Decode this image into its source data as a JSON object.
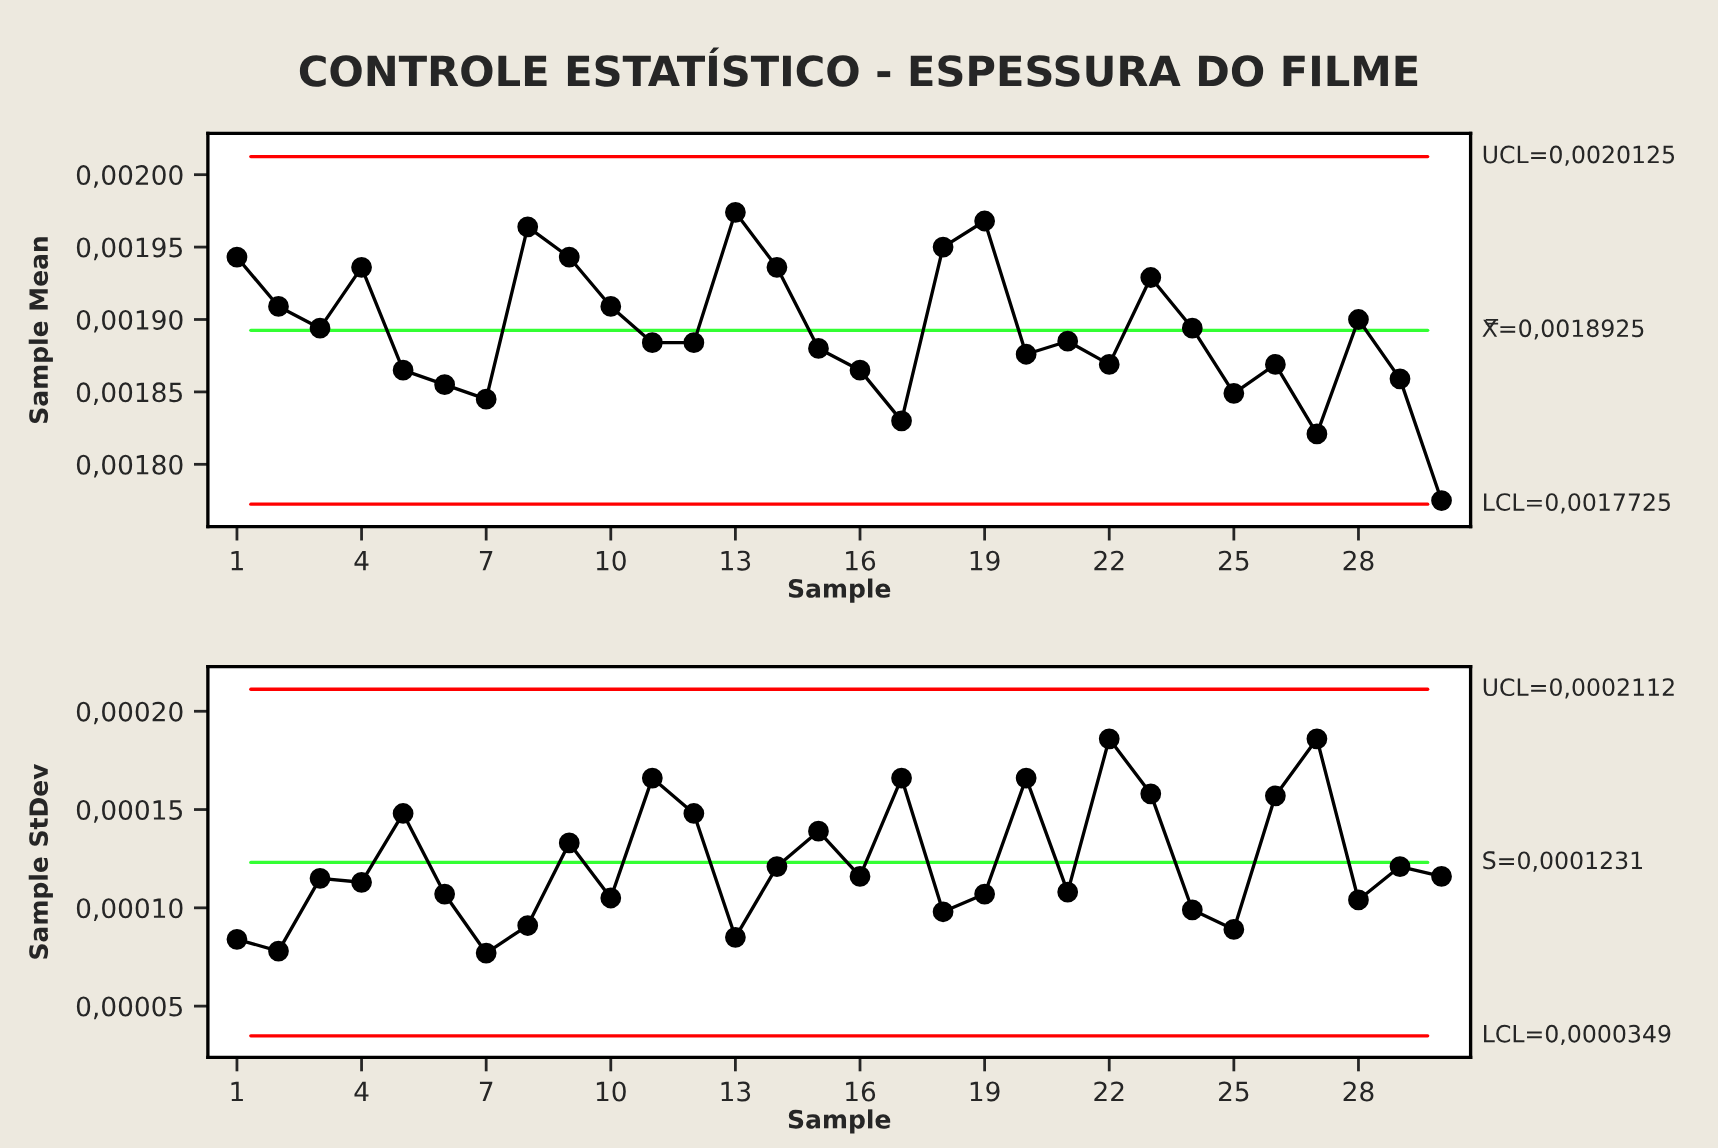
{
  "chart_data": [
    {
      "type": "line",
      "title": "CONTROLE ESTATÍSTICO - ESPESSURA DO FILME",
      "xlabel": "Sample",
      "ylabel": "Sample Mean",
      "x": [
        1,
        2,
        3,
        4,
        5,
        6,
        7,
        8,
        9,
        10,
        11,
        12,
        13,
        14,
        15,
        16,
        17,
        18,
        19,
        20,
        21,
        22,
        23,
        24,
        25,
        26,
        27,
        28,
        29,
        30
      ],
      "series": [
        {
          "color": "#000000",
          "values": [
            0.001943,
            0.001909,
            0.001894,
            0.001936,
            0.001865,
            0.001855,
            0.001845,
            0.001964,
            0.001943,
            0.001909,
            0.001884,
            0.001884,
            0.001974,
            0.001936,
            0.00188,
            0.001865,
            0.00183,
            0.00195,
            0.001968,
            0.001876,
            0.001885,
            0.001869,
            0.001929,
            0.001894,
            0.001849,
            0.001869,
            0.001821,
            0.0019,
            0.001859,
            0.001775
          ]
        }
      ],
      "marker": "circle",
      "line_style": "solid",
      "grid": false,
      "legend": false,
      "xlim": [
        0.3,
        30.7
      ],
      "xticks": [
        1,
        4,
        7,
        10,
        13,
        16,
        19,
        22,
        25,
        28
      ],
      "ylim": [
        0.001757,
        0.0020285
      ],
      "yticks": [
        {
          "value": 0.0018,
          "label": "0,00180"
        },
        {
          "value": 0.00185,
          "label": "0,00185"
        },
        {
          "value": 0.0019,
          "label": "0,00190"
        },
        {
          "value": 0.00195,
          "label": "0,00195"
        },
        {
          "value": 0.002,
          "label": "0,00200"
        }
      ],
      "ref_lines": [
        {
          "axis": "y",
          "value": 0.0020125,
          "label": "UCL=0,0020125",
          "color": "#ff0000"
        },
        {
          "axis": "y",
          "value": 0.0018925,
          "label": "X̿=0,0018925",
          "color": "#33ff33"
        },
        {
          "axis": "y",
          "value": 0.0017725,
          "label": "LCL=0,0017725",
          "color": "#ff0000"
        }
      ]
    },
    {
      "type": "line",
      "xlabel": "Sample",
      "ylabel": "Sample StDev",
      "x": [
        1,
        2,
        3,
        4,
        5,
        6,
        7,
        8,
        9,
        10,
        11,
        12,
        13,
        14,
        15,
        16,
        17,
        18,
        19,
        20,
        21,
        22,
        23,
        24,
        25,
        26,
        27,
        28,
        29,
        30
      ],
      "series": [
        {
          "color": "#000000",
          "values": [
            8.4e-05,
            7.8e-05,
            0.000115,
            0.000113,
            0.000148,
            0.000107,
            7.7e-05,
            9.1e-05,
            0.000133,
            0.000105,
            0.000166,
            0.000148,
            8.5e-05,
            0.000121,
            0.000139,
            0.000116,
            0.000166,
            9.8e-05,
            0.000107,
            0.000166,
            0.000108,
            0.000186,
            0.000158,
            9.9e-05,
            8.9e-05,
            0.000157,
            0.000186,
            0.000104,
            0.000121,
            0.000116
          ]
        }
      ],
      "marker": "circle",
      "line_style": "solid",
      "grid": false,
      "legend": false,
      "xlim": [
        0.3,
        30.7
      ],
      "xticks": [
        1,
        4,
        7,
        10,
        13,
        16,
        19,
        22,
        25,
        28
      ],
      "ylim": [
        2.39e-05,
        0.0002227
      ],
      "yticks": [
        {
          "value": 5e-05,
          "label": "0,00005"
        },
        {
          "value": 0.0001,
          "label": "0,00010"
        },
        {
          "value": 0.00015,
          "label": "0,00015"
        },
        {
          "value": 0.0002,
          "label": "0,00020"
        }
      ],
      "ref_lines": [
        {
          "axis": "y",
          "value": 0.0002112,
          "label": "UCL=0,0002112",
          "color": "#ff0000"
        },
        {
          "axis": "y",
          "value": 0.0001231,
          "label": "S̄=0,0001231",
          "color": "#33ff33"
        },
        {
          "axis": "y",
          "value": 3.49e-05,
          "label": "LCL=0,0000349",
          "color": "#ff0000"
        }
      ]
    }
  ]
}
